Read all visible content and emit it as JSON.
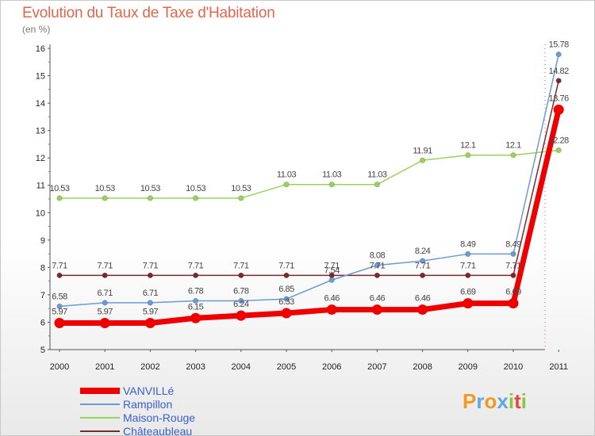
{
  "chart_data": {
    "type": "line",
    "title": "Evolution du Taux de Taxe d'Habitation",
    "unit": "(en %)",
    "x": [
      "2000",
      "2001",
      "2002",
      "2003",
      "2004",
      "2005",
      "2006",
      "2007",
      "2008",
      "2009",
      "2010",
      "2011"
    ],
    "ylim": [
      5,
      16
    ],
    "yticks": [
      "5",
      "6",
      "7",
      "8",
      "9",
      "10",
      "11",
      "12",
      "13",
      "14",
      "15",
      "16"
    ],
    "grid": false,
    "legend_position": "bottom-left",
    "series": [
      {
        "name": "VANVILLé",
        "color": "#ee0000",
        "values": [
          5.97,
          5.97,
          5.97,
          6.15,
          6.24,
          6.33,
          6.46,
          6.46,
          6.46,
          6.69,
          6.69,
          13.76
        ]
      },
      {
        "name": "Rampillon",
        "color": "#6b9bd2",
        "values": [
          6.58,
          6.71,
          6.71,
          6.78,
          6.78,
          6.85,
          7.54,
          8.08,
          8.24,
          8.49,
          8.49,
          15.78
        ]
      },
      {
        "name": "Maison-Rouge",
        "color": "#9ad35a",
        "values": [
          10.53,
          10.53,
          10.53,
          10.53,
          10.53,
          11.03,
          11.03,
          11.03,
          11.91,
          12.1,
          12.1,
          12.28
        ]
      },
      {
        "name": "Châteaubleau",
        "color": "#7a2a2a",
        "values": [
          7.71,
          7.71,
          7.71,
          7.71,
          7.71,
          7.71,
          7.71,
          7.71,
          7.71,
          7.71,
          7.71,
          14.82
        ]
      }
    ]
  },
  "logo": {
    "letters": [
      {
        "ch": "P",
        "color": "#f39a1f"
      },
      {
        "ch": "r",
        "color": "#5aa9e6"
      },
      {
        "ch": "o",
        "color": "#f39a1f"
      },
      {
        "ch": "x",
        "color": "#5aa9e6"
      },
      {
        "ch": "i",
        "color": "#8cc63f"
      },
      {
        "ch": "t",
        "color": "#e8453c"
      },
      {
        "ch": "i",
        "color": "#8cc63f"
      }
    ]
  }
}
